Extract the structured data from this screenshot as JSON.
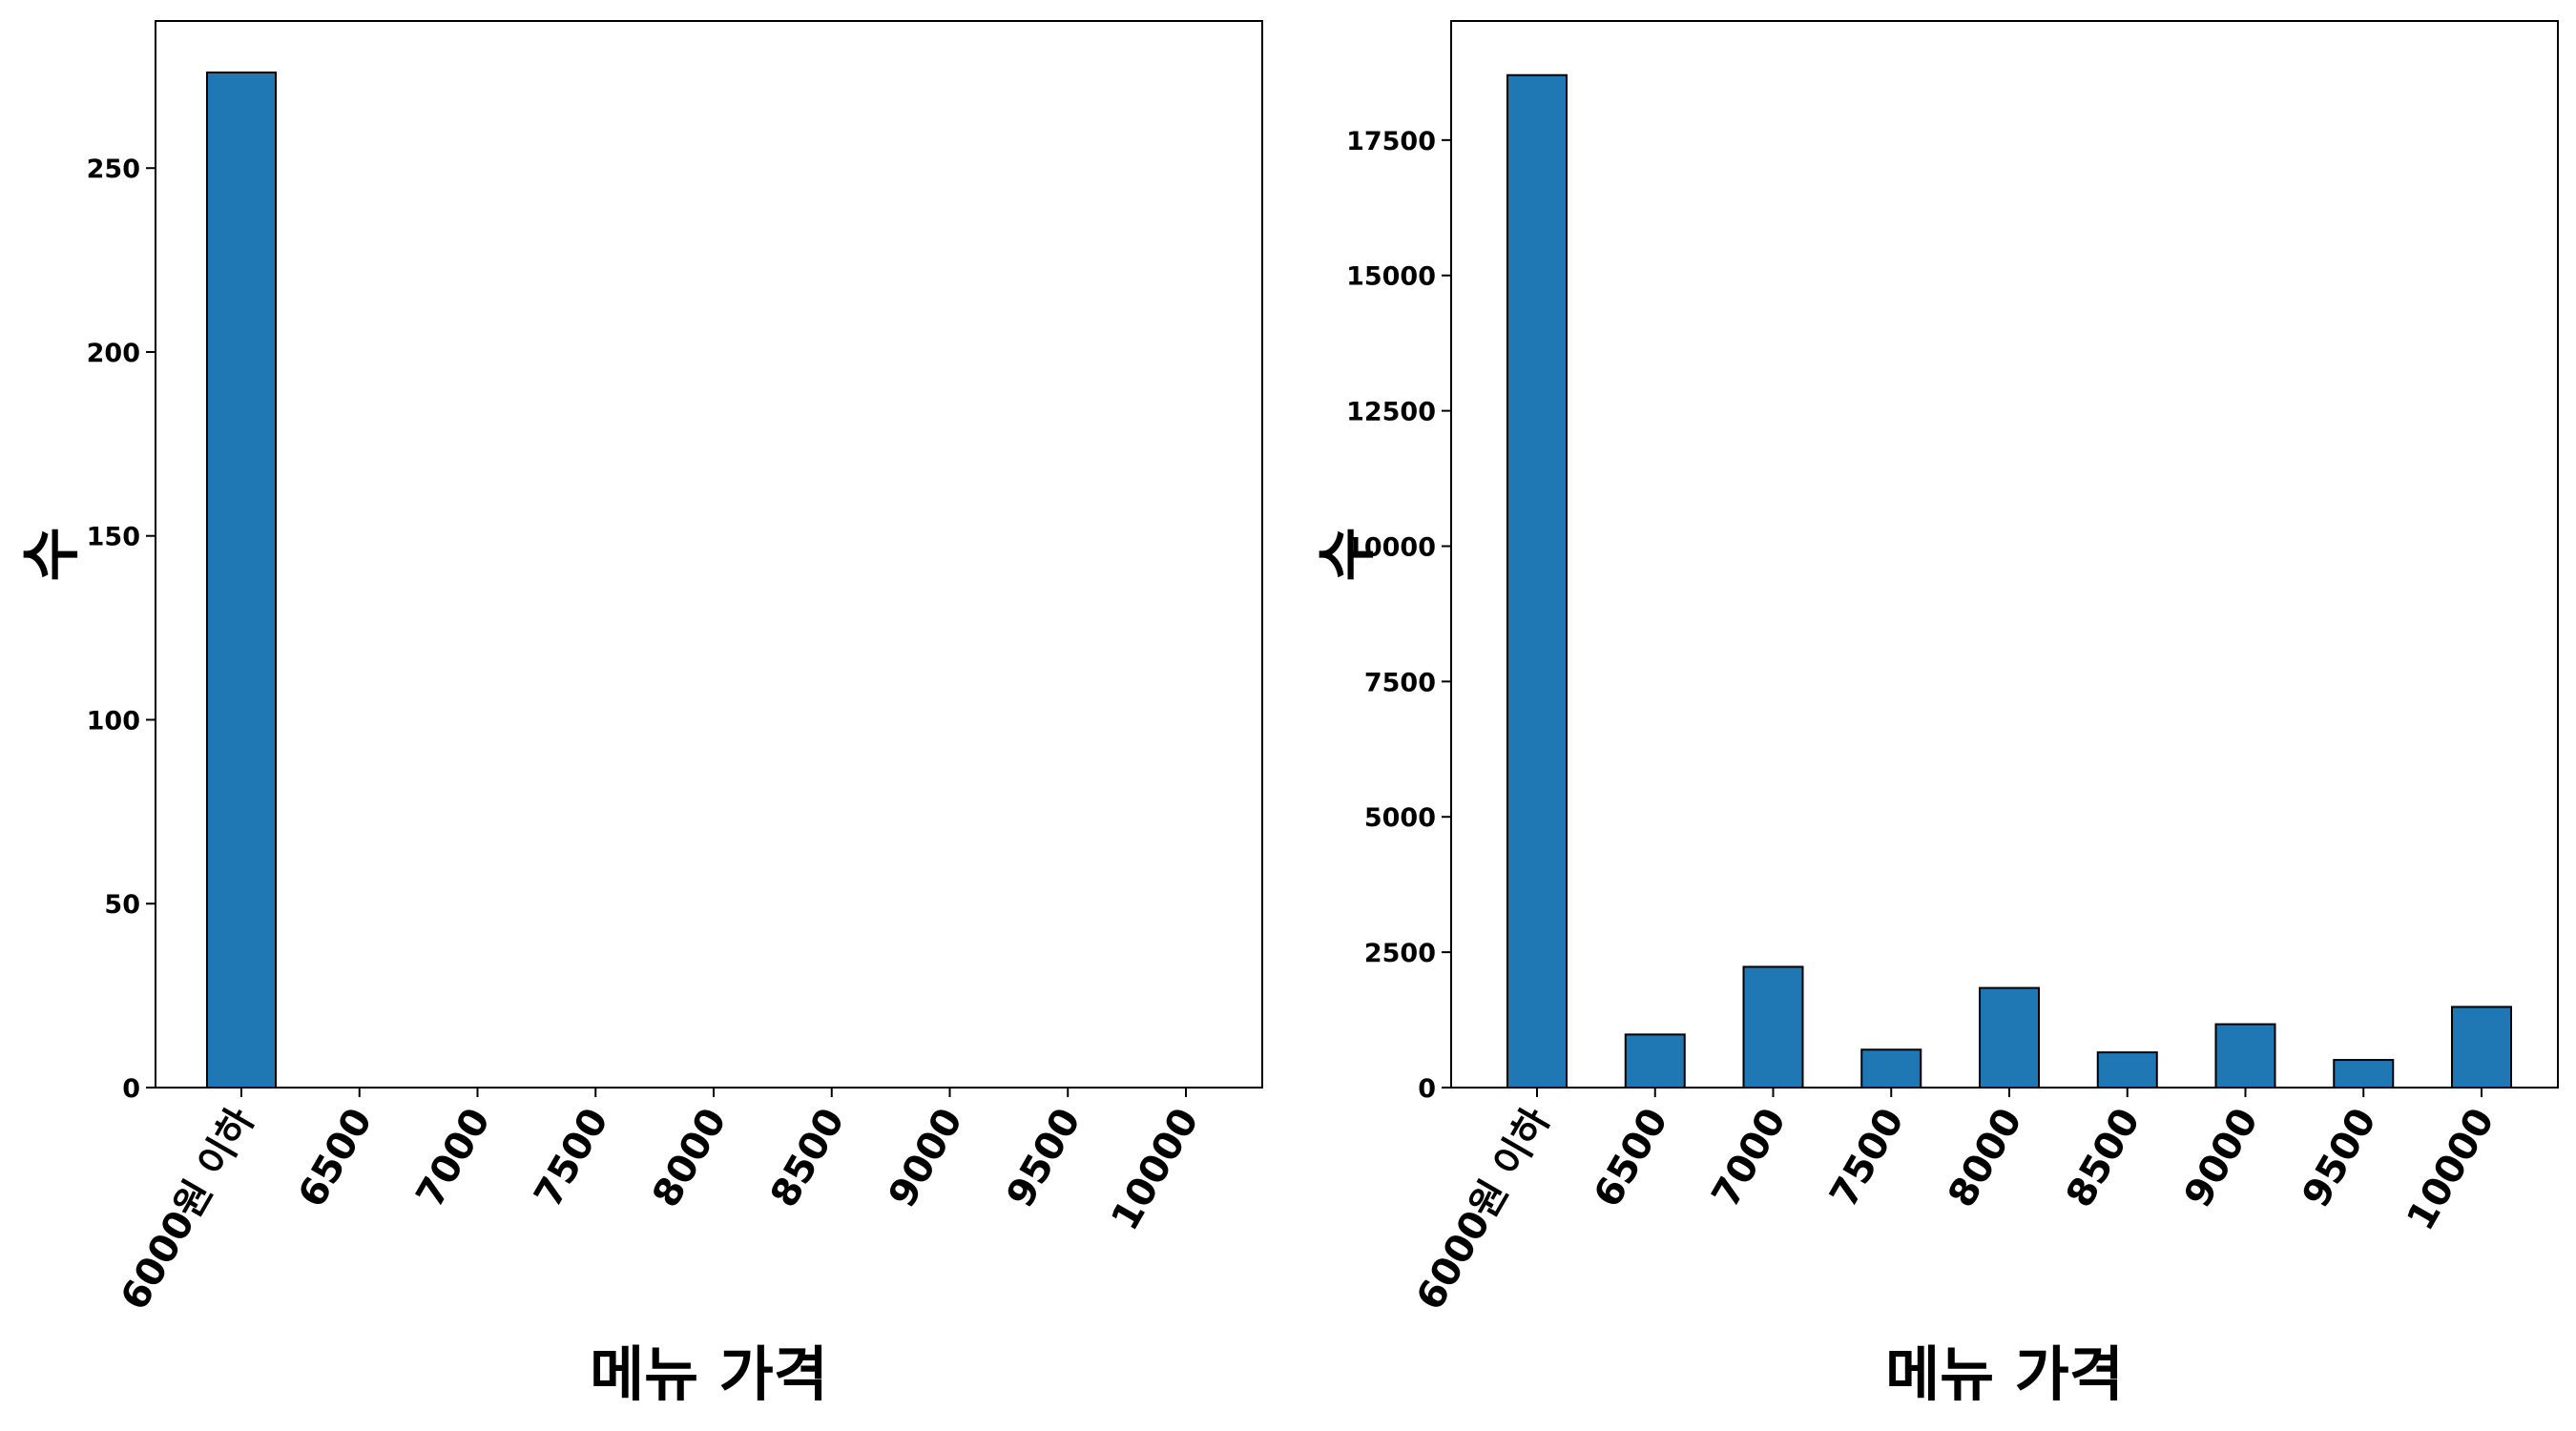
{
  "chart_data": [
    {
      "type": "bar",
      "categories": [
        "6000원 이하",
        "6500",
        "7000",
        "7500",
        "8000",
        "8500",
        "9000",
        "9500",
        "10000"
      ],
      "values": [
        276,
        0,
        0,
        0,
        0,
        0,
        0,
        0,
        0
      ],
      "xlabel": "메뉴 가격",
      "ylabel": "수",
      "ylim": [
        0,
        290
      ],
      "yticks": [
        0,
        50,
        100,
        150,
        200,
        250
      ],
      "bar_color": "#1f77b4",
      "edge_color": "#000000",
      "grid": false,
      "title": ""
    },
    {
      "type": "bar",
      "categories": [
        "6000원 이하",
        "6500",
        "7000",
        "7500",
        "8000",
        "8500",
        "9000",
        "9500",
        "10000"
      ],
      "values": [
        18700,
        980,
        2230,
        700,
        1840,
        650,
        1170,
        510,
        1490
      ],
      "xlabel": "메뉴 가격",
      "ylabel": "수",
      "ylim": [
        0,
        19700
      ],
      "yticks": [
        0,
        2500,
        5000,
        7500,
        10000,
        12500,
        15000,
        17500
      ],
      "bar_color": "#1f77b4",
      "edge_color": "#000000",
      "grid": false,
      "title": ""
    }
  ]
}
